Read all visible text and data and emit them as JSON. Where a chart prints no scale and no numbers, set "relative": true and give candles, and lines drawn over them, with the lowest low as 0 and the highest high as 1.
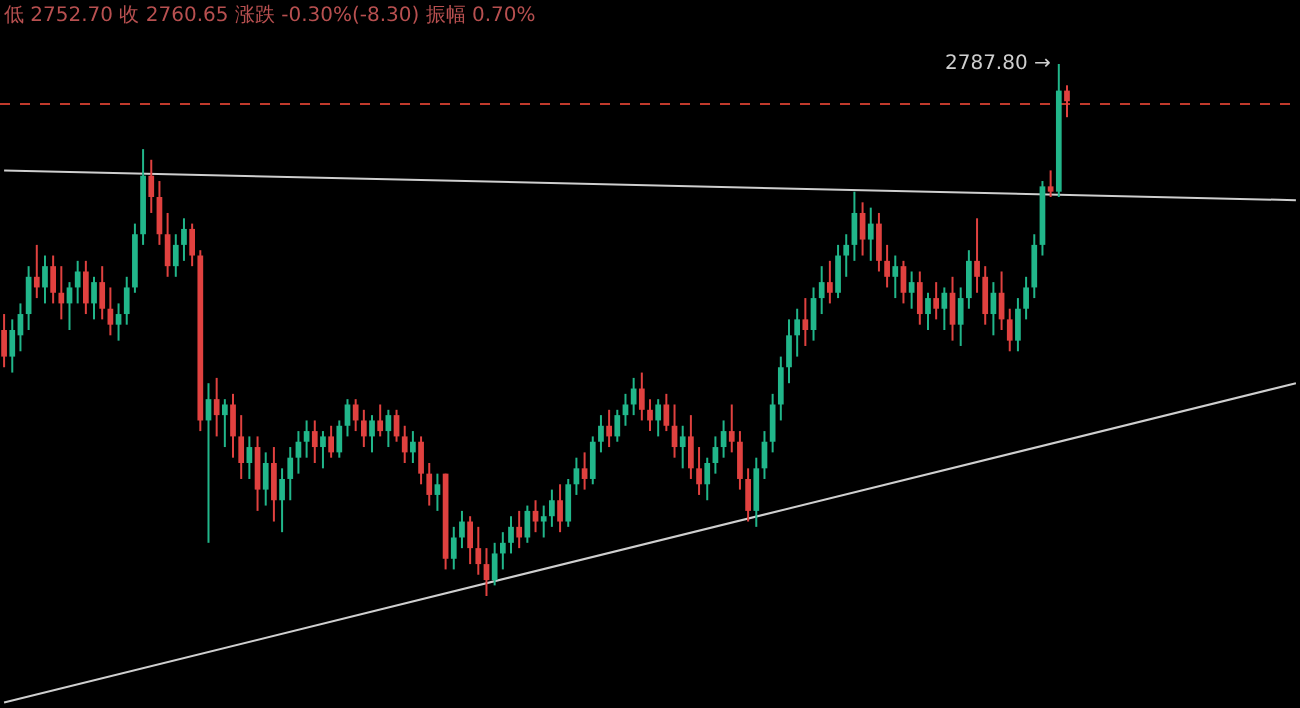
{
  "chart_data": {
    "type": "candlestick",
    "relative": true,
    "legend": false,
    "categories": [
      null,
      null,
      null,
      null,
      null,
      null,
      null,
      null,
      null,
      null,
      null,
      null,
      null,
      null,
      null,
      null,
      null,
      null,
      null,
      null,
      null,
      null,
      null,
      null,
      null,
      null,
      null,
      null,
      null,
      null,
      null,
      null,
      null,
      null,
      null,
      null,
      null,
      null,
      null,
      null,
      null,
      null,
      null,
      null,
      null,
      null,
      null,
      null,
      null,
      null,
      null,
      null,
      null,
      null,
      null,
      null,
      null,
      null,
      null,
      null,
      null,
      null,
      null,
      null,
      null,
      null,
      null,
      null,
      null,
      null,
      null,
      null,
      null,
      null,
      null,
      null,
      null,
      null,
      null,
      null,
      null,
      null,
      null,
      null,
      null,
      null,
      null,
      null,
      null,
      null,
      null,
      null,
      null,
      null,
      null,
      null,
      null,
      null,
      null,
      null,
      null,
      null,
      null,
      null,
      null,
      null,
      null,
      null,
      null,
      null,
      null,
      null,
      null,
      null,
      null,
      null,
      null,
      null,
      null,
      null,
      null,
      null,
      null,
      null,
      null,
      null,
      null,
      null,
      null,
      null,
      null,
      null,
      null,
      null,
      null,
      null,
      null,
      null,
      null,
      null,
      null,
      null,
      null,
      null,
      null,
      null,
      null,
      null,
      null,
      null,
      null,
      null,
      null,
      null,
      null,
      null,
      null,
      null,
      null
    ],
    "ohlc": [
      [
        0.5,
        0.53,
        0.43,
        0.45
      ],
      [
        0.45,
        0.52,
        0.42,
        0.5
      ],
      [
        0.49,
        0.55,
        0.46,
        0.53
      ],
      [
        0.53,
        0.62,
        0.5,
        0.6
      ],
      [
        0.6,
        0.66,
        0.56,
        0.58
      ],
      [
        0.58,
        0.64,
        0.55,
        0.62
      ],
      [
        0.62,
        0.64,
        0.55,
        0.57
      ],
      [
        0.57,
        0.62,
        0.52,
        0.55
      ],
      [
        0.55,
        0.59,
        0.5,
        0.58
      ],
      [
        0.58,
        0.63,
        0.55,
        0.61
      ],
      [
        0.61,
        0.63,
        0.53,
        0.55
      ],
      [
        0.55,
        0.6,
        0.52,
        0.59
      ],
      [
        0.59,
        0.62,
        0.52,
        0.54
      ],
      [
        0.54,
        0.58,
        0.49,
        0.51
      ],
      [
        0.51,
        0.55,
        0.48,
        0.53
      ],
      [
        0.53,
        0.6,
        0.51,
        0.58
      ],
      [
        0.58,
        0.7,
        0.57,
        0.68
      ],
      [
        0.68,
        0.84,
        0.66,
        0.79
      ],
      [
        0.79,
        0.82,
        0.72,
        0.75
      ],
      [
        0.75,
        0.78,
        0.66,
        0.68
      ],
      [
        0.68,
        0.72,
        0.6,
        0.62
      ],
      [
        0.62,
        0.68,
        0.6,
        0.66
      ],
      [
        0.66,
        0.71,
        0.63,
        0.69
      ],
      [
        0.69,
        0.7,
        0.62,
        0.64
      ],
      [
        0.64,
        0.65,
        0.31,
        0.33
      ],
      [
        0.33,
        0.4,
        0.1,
        0.37
      ],
      [
        0.37,
        0.41,
        0.3,
        0.34
      ],
      [
        0.34,
        0.37,
        0.28,
        0.36
      ],
      [
        0.36,
        0.38,
        0.26,
        0.3
      ],
      [
        0.3,
        0.34,
        0.22,
        0.25
      ],
      [
        0.25,
        0.3,
        0.22,
        0.28
      ],
      [
        0.28,
        0.3,
        0.16,
        0.2
      ],
      [
        0.2,
        0.27,
        0.17,
        0.25
      ],
      [
        0.25,
        0.28,
        0.14,
        0.18
      ],
      [
        0.18,
        0.24,
        0.12,
        0.22
      ],
      [
        0.22,
        0.28,
        0.18,
        0.26
      ],
      [
        0.26,
        0.31,
        0.23,
        0.29
      ],
      [
        0.29,
        0.33,
        0.26,
        0.31
      ],
      [
        0.31,
        0.33,
        0.25,
        0.28
      ],
      [
        0.28,
        0.31,
        0.24,
        0.3
      ],
      [
        0.3,
        0.32,
        0.26,
        0.27
      ],
      [
        0.27,
        0.33,
        0.26,
        0.32
      ],
      [
        0.32,
        0.37,
        0.3,
        0.36
      ],
      [
        0.36,
        0.37,
        0.31,
        0.33
      ],
      [
        0.33,
        0.35,
        0.28,
        0.3
      ],
      [
        0.3,
        0.34,
        0.27,
        0.33
      ],
      [
        0.33,
        0.36,
        0.3,
        0.31
      ],
      [
        0.31,
        0.35,
        0.28,
        0.34
      ],
      [
        0.34,
        0.35,
        0.29,
        0.3
      ],
      [
        0.3,
        0.32,
        0.25,
        0.27
      ],
      [
        0.27,
        0.31,
        0.25,
        0.29
      ],
      [
        0.29,
        0.3,
        0.21,
        0.23
      ],
      [
        0.23,
        0.25,
        0.17,
        0.19
      ],
      [
        0.19,
        0.23,
        0.16,
        0.21
      ],
      [
        0.23,
        0.23,
        0.05,
        0.07
      ],
      [
        0.07,
        0.13,
        0.05,
        0.11
      ],
      [
        0.11,
        0.16,
        0.09,
        0.14
      ],
      [
        0.14,
        0.15,
        0.06,
        0.09
      ],
      [
        0.09,
        0.13,
        0.04,
        0.06
      ],
      [
        0.06,
        0.09,
        0.0,
        0.03
      ],
      [
        0.03,
        0.1,
        0.02,
        0.08
      ],
      [
        0.08,
        0.12,
        0.05,
        0.1
      ],
      [
        0.1,
        0.15,
        0.08,
        0.13
      ],
      [
        0.13,
        0.16,
        0.09,
        0.11
      ],
      [
        0.11,
        0.17,
        0.1,
        0.16
      ],
      [
        0.16,
        0.18,
        0.12,
        0.14
      ],
      [
        0.14,
        0.17,
        0.11,
        0.15
      ],
      [
        0.15,
        0.2,
        0.13,
        0.18
      ],
      [
        0.18,
        0.21,
        0.12,
        0.14
      ],
      [
        0.14,
        0.22,
        0.13,
        0.21
      ],
      [
        0.21,
        0.26,
        0.19,
        0.24
      ],
      [
        0.24,
        0.27,
        0.2,
        0.22
      ],
      [
        0.22,
        0.3,
        0.21,
        0.29
      ],
      [
        0.29,
        0.34,
        0.27,
        0.32
      ],
      [
        0.32,
        0.35,
        0.28,
        0.3
      ],
      [
        0.3,
        0.35,
        0.29,
        0.34
      ],
      [
        0.34,
        0.38,
        0.32,
        0.36
      ],
      [
        0.36,
        0.41,
        0.34,
        0.39
      ],
      [
        0.39,
        0.42,
        0.33,
        0.35
      ],
      [
        0.35,
        0.37,
        0.31,
        0.33
      ],
      [
        0.33,
        0.37,
        0.3,
        0.36
      ],
      [
        0.36,
        0.38,
        0.31,
        0.32
      ],
      [
        0.32,
        0.36,
        0.26,
        0.28
      ],
      [
        0.28,
        0.32,
        0.24,
        0.3
      ],
      [
        0.3,
        0.34,
        0.22,
        0.24
      ],
      [
        0.24,
        0.28,
        0.19,
        0.21
      ],
      [
        0.21,
        0.26,
        0.18,
        0.25
      ],
      [
        0.25,
        0.3,
        0.23,
        0.28
      ],
      [
        0.28,
        0.33,
        0.26,
        0.31
      ],
      [
        0.31,
        0.36,
        0.27,
        0.29
      ],
      [
        0.29,
        0.31,
        0.2,
        0.22
      ],
      [
        0.22,
        0.24,
        0.14,
        0.16
      ],
      [
        0.16,
        0.26,
        0.13,
        0.24
      ],
      [
        0.24,
        0.31,
        0.22,
        0.29
      ],
      [
        0.29,
        0.38,
        0.27,
        0.36
      ],
      [
        0.36,
        0.45,
        0.33,
        0.43
      ],
      [
        0.43,
        0.52,
        0.4,
        0.49
      ],
      [
        0.49,
        0.54,
        0.45,
        0.52
      ],
      [
        0.52,
        0.56,
        0.47,
        0.5
      ],
      [
        0.5,
        0.58,
        0.48,
        0.56
      ],
      [
        0.56,
        0.62,
        0.53,
        0.59
      ],
      [
        0.59,
        0.63,
        0.55,
        0.57
      ],
      [
        0.57,
        0.66,
        0.56,
        0.64
      ],
      [
        0.64,
        0.68,
        0.6,
        0.66
      ],
      [
        0.66,
        0.76,
        0.63,
        0.72
      ],
      [
        0.72,
        0.74,
        0.64,
        0.67
      ],
      [
        0.67,
        0.73,
        0.63,
        0.7
      ],
      [
        0.7,
        0.72,
        0.61,
        0.63
      ],
      [
        0.63,
        0.66,
        0.58,
        0.6
      ],
      [
        0.6,
        0.64,
        0.56,
        0.62
      ],
      [
        0.62,
        0.63,
        0.55,
        0.57
      ],
      [
        0.57,
        0.61,
        0.54,
        0.59
      ],
      [
        0.59,
        0.61,
        0.51,
        0.53
      ],
      [
        0.53,
        0.57,
        0.5,
        0.56
      ],
      [
        0.56,
        0.59,
        0.52,
        0.54
      ],
      [
        0.54,
        0.58,
        0.5,
        0.57
      ],
      [
        0.57,
        0.6,
        0.48,
        0.51
      ],
      [
        0.51,
        0.58,
        0.47,
        0.56
      ],
      [
        0.56,
        0.65,
        0.54,
        0.63
      ],
      [
        0.63,
        0.71,
        0.57,
        0.6
      ],
      [
        0.6,
        0.62,
        0.51,
        0.53
      ],
      [
        0.53,
        0.59,
        0.49,
        0.57
      ],
      [
        0.57,
        0.61,
        0.5,
        0.52
      ],
      [
        0.52,
        0.54,
        0.46,
        0.48
      ],
      [
        0.48,
        0.56,
        0.46,
        0.54
      ],
      [
        0.54,
        0.6,
        0.52,
        0.58
      ],
      [
        0.58,
        0.68,
        0.56,
        0.66
      ],
      [
        0.66,
        0.78,
        0.64,
        0.77
      ],
      [
        0.77,
        0.8,
        0.75,
        0.76
      ],
      [
        0.76,
        1.0,
        0.75,
        0.95
      ],
      [
        0.95,
        0.96,
        0.9,
        0.93
      ],
      null,
      null,
      null,
      null,
      null,
      null,
      null,
      null,
      null,
      null,
      null,
      null,
      null,
      null,
      null,
      null,
      null,
      null,
      null,
      null,
      null,
      null,
      null,
      null,
      null,
      null,
      null,
      null
    ],
    "colors": [
      "#e0413f",
      "#21b68a",
      "#21b68a",
      "#21b68a",
      "#e0413f",
      "#21b68a",
      "#e0413f",
      "#e0413f",
      "#21b68a",
      "#21b68a",
      "#e0413f",
      "#21b68a",
      "#e0413f",
      "#e0413f",
      "#21b68a",
      "#21b68a",
      "#21b68a",
      "#21b68a",
      "#e0413f",
      "#e0413f",
      "#e0413f",
      "#21b68a",
      "#21b68a",
      "#e0413f",
      "#e0413f",
      "#21b68a",
      "#e0413f",
      "#21b68a",
      "#e0413f",
      "#e0413f",
      "#21b68a",
      "#e0413f",
      "#21b68a",
      "#e0413f",
      "#21b68a",
      "#21b68a",
      "#21b68a",
      "#21b68a",
      "#e0413f",
      "#21b68a",
      "#e0413f",
      "#21b68a",
      "#21b68a",
      "#e0413f",
      "#e0413f",
      "#21b68a",
      "#e0413f",
      "#21b68a",
      "#e0413f",
      "#e0413f",
      "#21b68a",
      "#e0413f",
      "#e0413f",
      "#21b68a",
      "#e0413f",
      "#21b68a",
      "#21b68a",
      "#e0413f",
      "#e0413f",
      "#e0413f",
      "#21b68a",
      "#21b68a",
      "#21b68a",
      "#e0413f",
      "#21b68a",
      "#e0413f",
      "#21b68a",
      "#21b68a",
      "#e0413f",
      "#21b68a",
      "#21b68a",
      "#e0413f",
      "#21b68a",
      "#21b68a",
      "#e0413f",
      "#21b68a",
      "#21b68a",
      "#21b68a",
      "#e0413f",
      "#e0413f",
      "#21b68a",
      "#e0413f",
      "#e0413f",
      "#21b68a",
      "#e0413f",
      "#e0413f",
      "#21b68a",
      "#21b68a",
      "#21b68a",
      "#e0413f",
      "#e0413f",
      "#e0413f",
      "#21b68a",
      "#21b68a",
      "#21b68a",
      "#21b68a",
      "#21b68a",
      "#21b68a",
      "#e0413f",
      "#21b68a",
      "#21b68a",
      "#e0413f",
      "#21b68a",
      "#21b68a",
      "#21b68a",
      "#e0413f",
      "#21b68a",
      "#e0413f",
      "#e0413f",
      "#21b68a",
      "#e0413f",
      "#21b68a",
      "#e0413f",
      "#21b68a",
      "#e0413f",
      "#21b68a",
      "#e0413f",
      "#21b68a",
      "#21b68a",
      "#e0413f",
      "#e0413f",
      "#21b68a",
      "#e0413f",
      "#e0413f",
      "#21b68a",
      "#21b68a",
      "#21b68a",
      "#21b68a",
      "#e0413f",
      "#21b68a",
      "#e0413f",
      null,
      null,
      null,
      null,
      null,
      null,
      null,
      null,
      null,
      null,
      null,
      null,
      null,
      null,
      null,
      null,
      null,
      null,
      null,
      null,
      null,
      null,
      null,
      null,
      null,
      null,
      null,
      null
    ],
    "series": [
      {
        "type": "line",
        "color": "#cfcfcf",
        "values": [
          0.8,
          null,
          null,
          null,
          null,
          null,
          null,
          null,
          null,
          null,
          null,
          null,
          null,
          null,
          null,
          null,
          null,
          null,
          null,
          null,
          null,
          null,
          null,
          null,
          null,
          null,
          null,
          null,
          null,
          null,
          null,
          null,
          null,
          null,
          null,
          null,
          null,
          null,
          null,
          null,
          null,
          null,
          null,
          null,
          null,
          null,
          null,
          null,
          null,
          null,
          null,
          null,
          null,
          null,
          null,
          null,
          null,
          null,
          null,
          null,
          null,
          null,
          null,
          null,
          null,
          null,
          null,
          null,
          null,
          null,
          null,
          null,
          null,
          null,
          null,
          null,
          null,
          null,
          null,
          null,
          null,
          null,
          null,
          null,
          null,
          null,
          null,
          null,
          null,
          null,
          null,
          null,
          null,
          null,
          null,
          null,
          null,
          null,
          null,
          null,
          null,
          null,
          null,
          null,
          null,
          null,
          null,
          null,
          null,
          null,
          null,
          null,
          null,
          null,
          null,
          null,
          null,
          null,
          null,
          null,
          null,
          null,
          null,
          null,
          null,
          null,
          null,
          null,
          null,
          null,
          null,
          null,
          null,
          null,
          null,
          null,
          null,
          null,
          null,
          null,
          null,
          null,
          null,
          null,
          null,
          null,
          null,
          null,
          null,
          null,
          null,
          null,
          null,
          null,
          null,
          null,
          null,
          null,
          0.744
        ]
      },
      {
        "type": "line",
        "color": "#cfcfcf",
        "values": [
          -0.2,
          null,
          null,
          null,
          null,
          null,
          null,
          null,
          null,
          null,
          null,
          null,
          null,
          null,
          null,
          null,
          null,
          null,
          null,
          null,
          null,
          null,
          null,
          null,
          null,
          null,
          null,
          null,
          null,
          null,
          null,
          null,
          null,
          null,
          null,
          null,
          null,
          null,
          null,
          null,
          null,
          null,
          null,
          null,
          null,
          null,
          null,
          null,
          null,
          null,
          null,
          null,
          null,
          null,
          null,
          null,
          null,
          null,
          null,
          null,
          null,
          null,
          null,
          null,
          null,
          null,
          null,
          null,
          null,
          null,
          null,
          null,
          null,
          null,
          null,
          null,
          null,
          null,
          null,
          null,
          null,
          null,
          null,
          null,
          null,
          null,
          null,
          null,
          null,
          null,
          null,
          null,
          null,
          null,
          null,
          null,
          null,
          null,
          null,
          null,
          null,
          null,
          null,
          null,
          null,
          null,
          null,
          null,
          null,
          null,
          null,
          null,
          null,
          null,
          null,
          null,
          null,
          null,
          null,
          null,
          null,
          null,
          null,
          null,
          null,
          null,
          null,
          null,
          null,
          null,
          null,
          null,
          null,
          null,
          null,
          null,
          null,
          null,
          null,
          null,
          null,
          null,
          null,
          null,
          null,
          null,
          null,
          null,
          null,
          null,
          null,
          null,
          null,
          null,
          null,
          null,
          null,
          null,
          0.4
        ]
      }
    ],
    "ref_lines": [
      {
        "axis": "y",
        "value": 0.925,
        "color": "#c0392b",
        "line_style": "dashed"
      }
    ],
    "annotations": [
      "低 2752.70 收 2760.65 涨跌 -0.30%(-8.30) 振幅 0.70%",
      "2787.80 →"
    ]
  }
}
